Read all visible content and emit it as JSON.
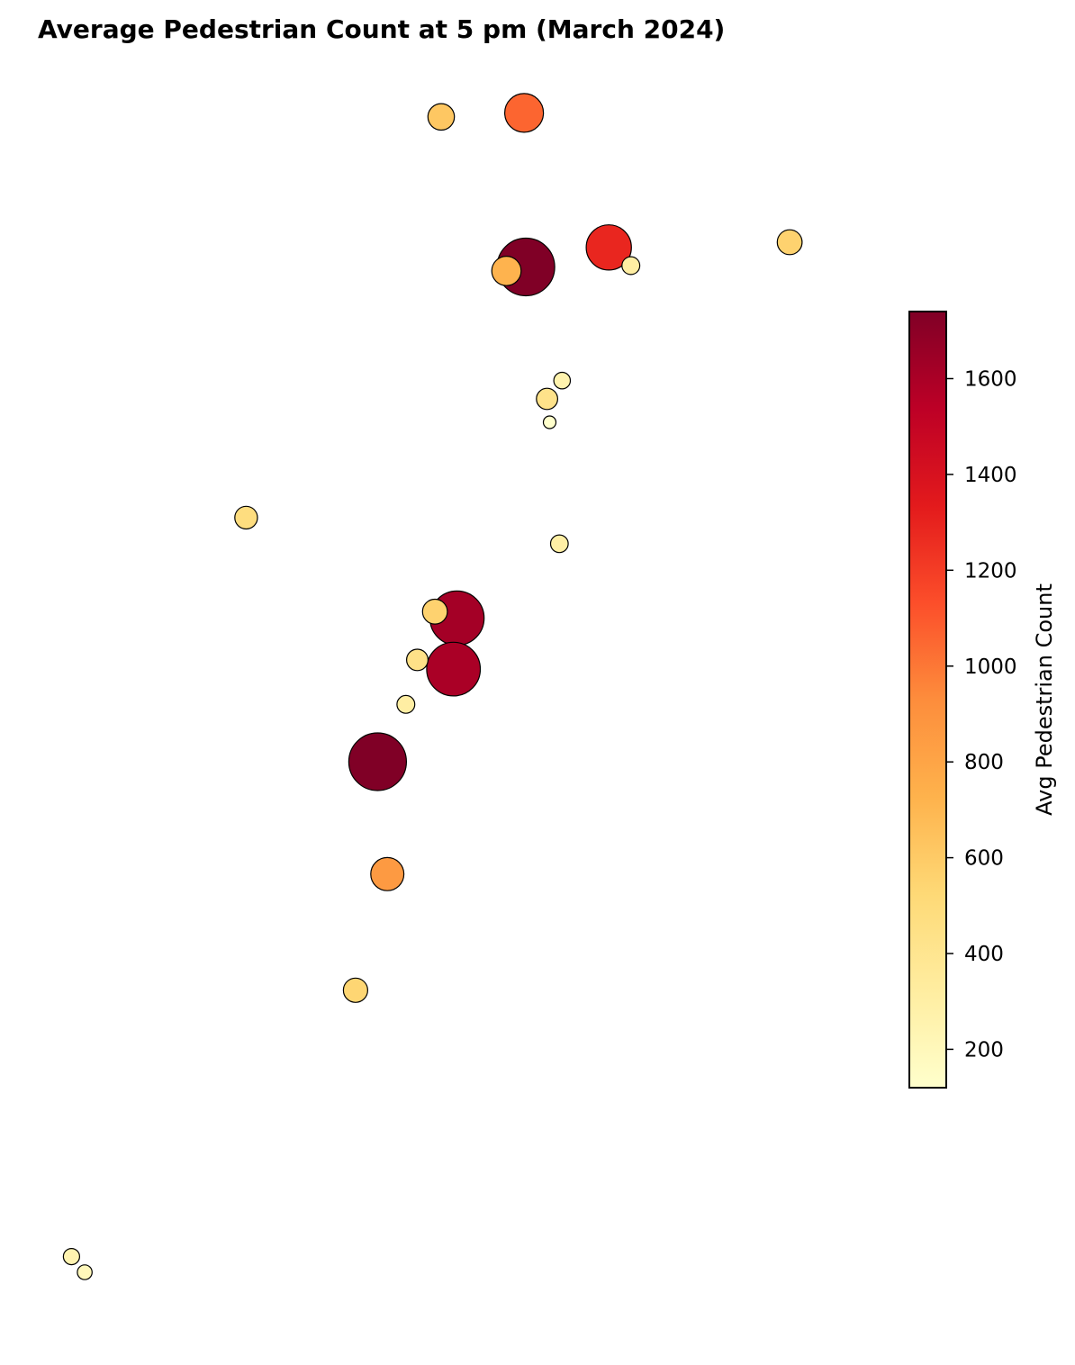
{
  "chart_data": {
    "type": "scatter",
    "title": "Average Pedestrian Count at 5 pm (March 2024)",
    "xlabel": "",
    "ylabel": "",
    "axes_visible": false,
    "grid": false,
    "colorbar": {
      "label": "Avg Pedestrian Count",
      "colormap": "YlOrRd",
      "range": [
        120,
        1740
      ],
      "ticks": [
        200,
        400,
        600,
        800,
        1000,
        1200,
        1400,
        1600
      ],
      "placement": "right"
    },
    "x": [
      0.5,
      0.594,
      0.69,
      0.574,
      0.596,
      0.715,
      0.895,
      0.62,
      0.637,
      0.623,
      0.634,
      0.279,
      0.518,
      0.493,
      0.473,
      0.514,
      0.46,
      0.428,
      0.439,
      0.403,
      0.081,
      0.096
    ],
    "y": [
      0.945,
      0.948,
      0.845,
      0.827,
      0.83,
      0.831,
      0.849,
      0.729,
      0.743,
      0.711,
      0.618,
      0.638,
      0.561,
      0.566,
      0.529,
      0.522,
      0.495,
      0.451,
      0.365,
      0.276,
      0.072,
      0.06
    ],
    "values": [
      620,
      1060,
      1290,
      720,
      1740,
      310,
      560,
      430,
      260,
      120,
      300,
      480,
      1620,
      560,
      440,
      1600,
      310,
      1740,
      860,
      540,
      250,
      200
    ]
  }
}
